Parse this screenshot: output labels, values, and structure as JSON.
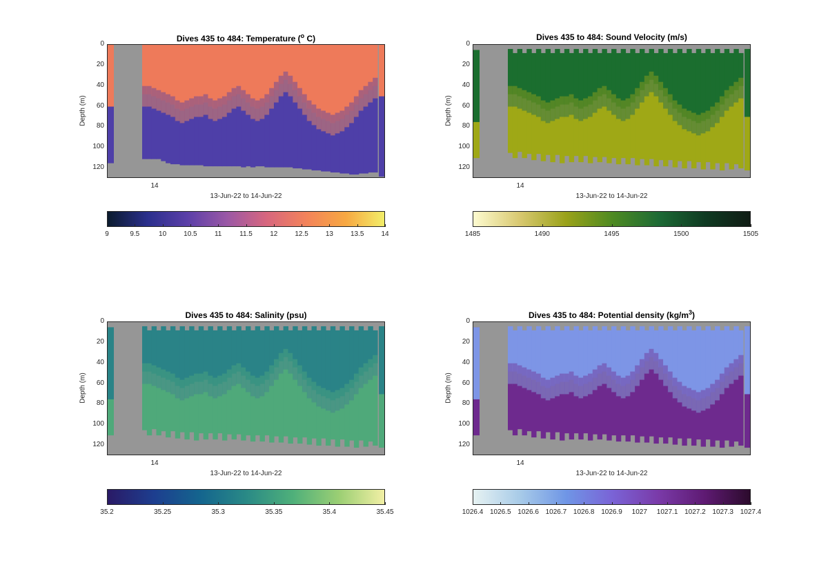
{
  "figure": {
    "panels": [
      {
        "id": "temperature",
        "title": "Dives 435 to 484: Temperature (",
        "title_sup": "o",
        "title_end": " C)",
        "ylabel": "Depth (m)",
        "yticks": [
          "0",
          "20",
          "40",
          "60",
          "80",
          "100",
          "120"
        ],
        "xtick": "14",
        "xlabel": "13-Jun-22 to 14-Jun-22",
        "colorbar_ticks": [
          "9",
          "9.5",
          "10",
          "10.5",
          "11",
          "11.5",
          "12",
          "12.5",
          "13",
          "13.5",
          "14"
        ],
        "colormap": [
          "#0b1b2e",
          "#2a2f8c",
          "#5b3fa8",
          "#9a58a6",
          "#d7667e",
          "#f3835a",
          "#f7a842",
          "#f2f06a"
        ],
        "upper_color": "#ee7a5a",
        "lower_color": "#4e3fa8"
      },
      {
        "id": "sound-velocity",
        "title": "Dives 435 to 484: Sound Velocity (m/s)",
        "ylabel": "Depth (m)",
        "yticks": [
          "0",
          "20",
          "40",
          "60",
          "80",
          "100",
          "120"
        ],
        "xtick": "14",
        "xlabel": "13-Jun-22 to 14-Jun-22",
        "colorbar_ticks": [
          "1485",
          "1490",
          "1495",
          "1500",
          "1505"
        ],
        "colormap": [
          "#fdfbd0",
          "#d8c870",
          "#9aa21a",
          "#4e8a22",
          "#1d6a35",
          "#0f3a22",
          "#101b14"
        ],
        "upper_color": "#1b6e2f",
        "lower_color": "#9fa816"
      },
      {
        "id": "salinity",
        "title": "Dives 435 to 484: Salinity (psu)",
        "ylabel": "Depth (m)",
        "yticks": [
          "0",
          "20",
          "40",
          "60",
          "80",
          "100",
          "120"
        ],
        "xtick": "14",
        "xlabel": "13-Jun-22 to 14-Jun-22",
        "colorbar_ticks": [
          "35.2",
          "35.25",
          "35.3",
          "35.35",
          "35.4",
          "35.45"
        ],
        "colormap": [
          "#2a1a66",
          "#1d3e8f",
          "#14658e",
          "#2a8a86",
          "#4fb07a",
          "#9ccf74",
          "#f4f0a6"
        ],
        "upper_color": "#2a8387",
        "lower_color": "#4fa97a"
      },
      {
        "id": "potential-density",
        "title": "Dives 435 to 484: Potential density (kg/m",
        "title_sup": "3",
        "title_end": ")",
        "ylabel": "Depth (m)",
        "yticks": [
          "0",
          "20",
          "40",
          "60",
          "80",
          "100",
          "120"
        ],
        "xtick": "14",
        "xlabel": "13-Jun-22 to 14-Jun-22",
        "colorbar_ticks": [
          "1026.4",
          "1026.5",
          "1026.6",
          "1026.7",
          "1026.8",
          "1026.9",
          "1027",
          "1027.1",
          "1027.2",
          "1027.3",
          "1027.4"
        ],
        "colormap": [
          "#e6f2f2",
          "#a8cbe8",
          "#6f96e6",
          "#7a63d6",
          "#7a3aa8",
          "#5e1a72",
          "#2a0a2a"
        ],
        "upper_color": "#7d95e6",
        "lower_color": "#6e2a8e"
      }
    ]
  },
  "chart_data": [
    {
      "type": "heatmap",
      "title": "Dives 435 to 484: Temperature (o C)",
      "ylabel": "Depth (m)",
      "xlabel": "13-Jun-22 to 14-Jun-22",
      "ylim": [
        0,
        130
      ],
      "yreversed": true,
      "clim": [
        9,
        14
      ],
      "colorbar_ticks": [
        9,
        9.5,
        10,
        10.5,
        11,
        11.5,
        12,
        12.5,
        13,
        13.5,
        14
      ],
      "thermocline_depth_m": [
        48,
        48,
        50,
        52,
        54,
        56,
        58,
        62,
        64,
        62,
        60,
        58,
        58,
        56,
        60,
        62,
        60,
        58,
        54,
        50,
        48,
        52,
        56,
        60,
        62,
        60,
        56,
        50,
        44,
        38,
        34,
        38,
        44,
        50,
        56,
        62,
        66,
        70,
        72,
        74,
        76,
        74,
        72,
        68,
        64,
        58,
        52,
        48,
        44,
        40
      ],
      "max_depth_m": [
        111,
        111,
        111,
        111,
        113,
        115,
        116,
        116,
        117,
        117,
        117,
        117,
        117,
        118,
        118,
        118,
        118,
        118,
        118,
        118,
        118,
        119,
        118,
        119,
        118,
        118,
        119,
        119,
        119,
        119,
        119,
        119,
        120,
        120,
        121,
        121,
        122,
        122,
        123,
        123,
        124,
        124,
        125,
        125,
        126,
        126,
        125,
        125,
        124,
        124
      ]
    },
    {
      "type": "heatmap",
      "title": "Dives 435 to 484: Sound Velocity (m/s)",
      "ylabel": "Depth (m)",
      "xlabel": "13-Jun-22 to 14-Jun-22",
      "ylim": [
        0,
        130
      ],
      "yreversed": true,
      "clim": [
        1485,
        1505
      ],
      "colorbar_ticks": [
        1485,
        1490,
        1495,
        1500,
        1505
      ],
      "thermocline_depth_m": [
        48,
        48,
        50,
        52,
        54,
        56,
        58,
        62,
        64,
        62,
        60,
        58,
        58,
        56,
        60,
        62,
        60,
        58,
        54,
        50,
        48,
        52,
        56,
        60,
        62,
        60,
        56,
        50,
        44,
        38,
        34,
        38,
        44,
        50,
        56,
        62,
        66,
        70,
        72,
        74,
        76,
        74,
        72,
        68,
        64,
        58,
        52,
        48,
        44,
        40
      ],
      "max_depth_m": [
        105,
        110,
        104,
        110,
        106,
        112,
        106,
        113,
        107,
        114,
        107,
        115,
        108,
        114,
        108,
        114,
        108,
        115,
        109,
        114,
        109,
        115,
        110,
        116,
        110,
        116,
        110,
        117,
        111,
        117,
        111,
        118,
        112,
        118,
        112,
        119,
        113,
        120,
        113,
        120,
        114,
        121,
        114,
        121,
        115,
        122,
        115,
        121,
        116,
        120
      ]
    },
    {
      "type": "heatmap",
      "title": "Dives 435 to 484: Salinity (psu)",
      "ylabel": "Depth (m)",
      "xlabel": "13-Jun-22 to 14-Jun-22",
      "ylim": [
        0,
        130
      ],
      "yreversed": true,
      "clim": [
        35.2,
        35.45
      ],
      "colorbar_ticks": [
        35.2,
        35.25,
        35.3,
        35.35,
        35.4,
        35.45
      ],
      "thermocline_depth_m": [
        48,
        48,
        50,
        52,
        54,
        56,
        58,
        62,
        64,
        62,
        60,
        58,
        58,
        56,
        60,
        62,
        60,
        58,
        54,
        50,
        48,
        52,
        56,
        60,
        62,
        60,
        56,
        50,
        44,
        38,
        34,
        38,
        44,
        50,
        56,
        62,
        66,
        70,
        72,
        74,
        76,
        74,
        72,
        68,
        64,
        58,
        52,
        48,
        44,
        40
      ],
      "max_depth_m": [
        105,
        110,
        104,
        110,
        106,
        112,
        106,
        113,
        107,
        114,
        107,
        115,
        108,
        114,
        108,
        114,
        108,
        115,
        109,
        114,
        109,
        115,
        110,
        116,
        110,
        116,
        110,
        117,
        111,
        117,
        111,
        118,
        112,
        118,
        112,
        119,
        113,
        120,
        113,
        120,
        114,
        121,
        114,
        121,
        115,
        122,
        115,
        121,
        116,
        120
      ]
    },
    {
      "type": "heatmap",
      "title": "Dives 435 to 484: Potential density (kg/m3)",
      "ylabel": "Depth (m)",
      "xlabel": "13-Jun-22 to 14-Jun-22",
      "ylim": [
        0,
        130
      ],
      "yreversed": true,
      "clim": [
        1026.4,
        1027.4
      ],
      "colorbar_ticks": [
        1026.4,
        1026.5,
        1026.6,
        1026.7,
        1026.8,
        1026.9,
        1027,
        1027.1,
        1027.2,
        1027.3,
        1027.4
      ],
      "thermocline_depth_m": [
        48,
        48,
        50,
        52,
        54,
        56,
        58,
        62,
        64,
        62,
        60,
        58,
        58,
        56,
        60,
        62,
        60,
        58,
        54,
        50,
        48,
        52,
        56,
        60,
        62,
        60,
        56,
        50,
        44,
        38,
        34,
        38,
        44,
        50,
        56,
        62,
        66,
        70,
        72,
        74,
        76,
        74,
        72,
        68,
        64,
        58,
        52,
        48,
        44,
        40
      ],
      "max_depth_m": [
        105,
        110,
        104,
        110,
        106,
        112,
        106,
        113,
        107,
        114,
        107,
        115,
        108,
        114,
        108,
        114,
        108,
        115,
        109,
        114,
        109,
        115,
        110,
        116,
        110,
        116,
        110,
        117,
        111,
        117,
        111,
        118,
        112,
        118,
        112,
        119,
        113,
        120,
        113,
        120,
        114,
        121,
        114,
        121,
        115,
        122,
        115,
        121,
        116,
        120
      ]
    }
  ]
}
